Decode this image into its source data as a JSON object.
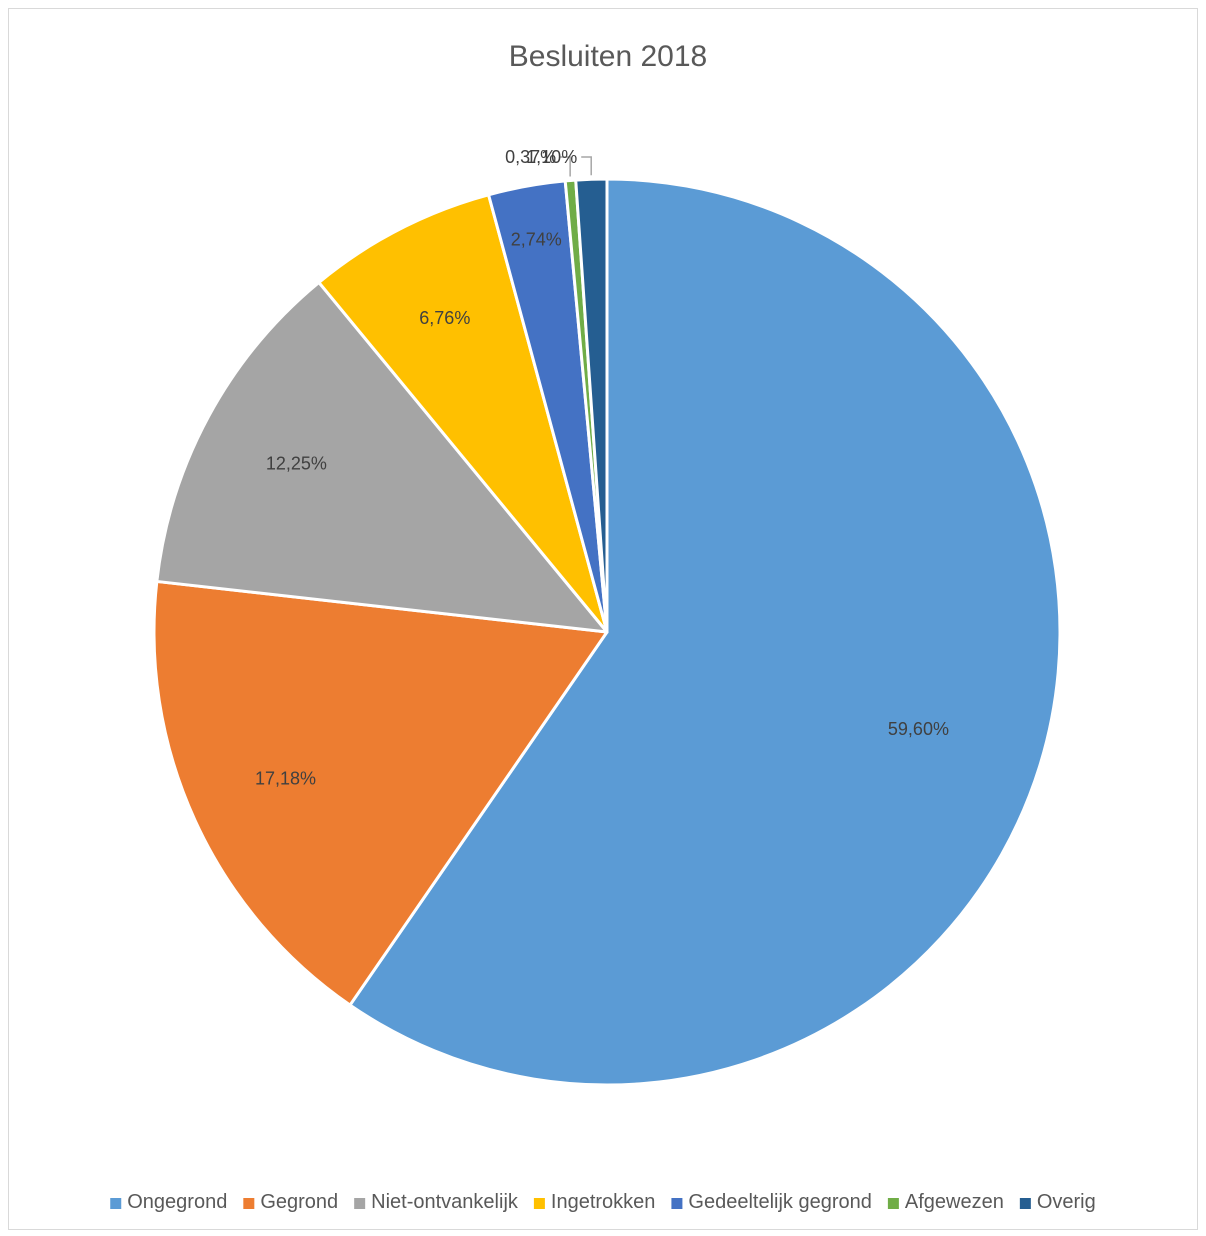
{
  "chart_data": {
    "type": "pie",
    "title": "Besluiten 2018",
    "categories": [
      "Ongegrond",
      "Gegrond",
      "Niet-ontvankelijk",
      "Ingetrokken",
      "Gedeeltelijk gegrond",
      "Afgewezen",
      "Overig"
    ],
    "values": [
      59.6,
      17.18,
      12.25,
      6.76,
      2.74,
      0.37,
      1.1
    ],
    "data_labels": [
      "59,60%",
      "17,18%",
      "12,25%",
      "6,76%",
      "2,74%",
      "0,37%",
      "1,10%"
    ],
    "colors": [
      "#5b9bd5",
      "#ed7d31",
      "#a5a5a5",
      "#ffc000",
      "#4472c4",
      "#70ad47",
      "#255e91"
    ],
    "start_angle": "12 o'clock",
    "direction": "clockwise",
    "legend_position": "bottom",
    "label_border_color": "#ffffff",
    "leader_line_color": "#a6a6a6"
  }
}
